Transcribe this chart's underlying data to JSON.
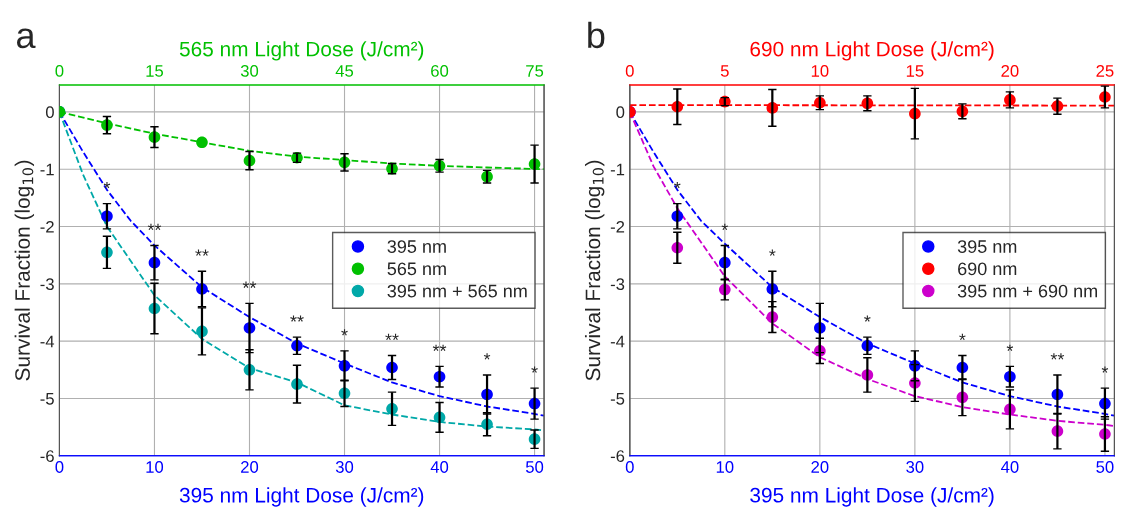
{
  "chart_data": [
    {
      "type": "scatter",
      "title": "a",
      "xlabel": "395 nm Light Dose (J/cm²)",
      "x2label": "565 nm Light Dose (J/cm²)",
      "ylabel": "Survival Fraction (log$_{10}$)",
      "xlim": [
        0,
        51
      ],
      "xticks": [
        0,
        10,
        20,
        30,
        40,
        50
      ],
      "x2lim": [
        0,
        76.5
      ],
      "x2ticks": [
        0,
        15,
        30,
        45,
        60,
        75
      ],
      "ylim": [
        -6,
        0.47
      ],
      "yticks": [
        -6,
        -5,
        -4,
        -3,
        -2,
        -1,
        0
      ],
      "grid": true,
      "legend": "right",
      "marker": "circle",
      "series": [
        {
          "name": "395 nm",
          "color": "#0000ff",
          "x": [
            0,
            5,
            10,
            15,
            20,
            25,
            30,
            35,
            40,
            45,
            50
          ],
          "values": [
            0,
            -1.82,
            -2.63,
            -3.09,
            -3.77,
            -4.08,
            -4.43,
            -4.46,
            -4.62,
            -4.93,
            -5.09
          ],
          "errors": [
            null,
            0.22,
            0.3,
            0.31,
            0.43,
            0.15,
            0.26,
            0.21,
            0.18,
            0.34,
            0.27
          ]
        },
        {
          "name": "565 nm",
          "axis": "x2",
          "color": "#00c000",
          "x": [
            0,
            7.5,
            15,
            22.5,
            30,
            37.5,
            45,
            52.5,
            60,
            67.5,
            75
          ],
          "values": [
            0,
            -0.23,
            -0.44,
            -0.53,
            -0.85,
            -0.8,
            -0.88,
            -0.99,
            -0.94,
            -1.13,
            -0.91
          ],
          "errors": [
            null,
            0.15,
            0.18,
            null,
            0.16,
            0.08,
            0.15,
            0.09,
            0.11,
            0.11,
            0.33
          ]
        },
        {
          "name": "395 nm + 565 nm",
          "color": "#00a8a8",
          "x": [
            0,
            5,
            10,
            15,
            20,
            25,
            30,
            35,
            40,
            45,
            50
          ],
          "values": [
            0,
            -2.45,
            -3.43,
            -3.83,
            -4.5,
            -4.75,
            -4.91,
            -5.18,
            -5.33,
            -5.45,
            -5.71
          ],
          "errors": [
            null,
            0.28,
            0.44,
            0.41,
            0.35,
            0.33,
            0.23,
            0.29,
            0.26,
            0.2,
            0.16
          ]
        },
        {
          "type": "line",
          "line_style": "dashed",
          "marker": "none",
          "color": "#0000ff",
          "x": [
            0,
            2.5,
            5,
            7.5,
            10,
            15,
            20,
            25,
            30,
            35,
            40,
            45,
            50,
            51
          ],
          "values": [
            0,
            -0.7,
            -1.36,
            -1.9,
            -2.33,
            -3.06,
            -3.58,
            -4.04,
            -4.39,
            -4.72,
            -4.96,
            -5.14,
            -5.27,
            -5.3
          ]
        },
        {
          "type": "line",
          "line_style": "dashed",
          "marker": "none",
          "axis": "x2",
          "color": "#00c000",
          "x": [
            0,
            7.5,
            15,
            22.5,
            30,
            37.5,
            45,
            52.5,
            60,
            67.5,
            76.5
          ],
          "values": [
            0,
            -0.2,
            -0.38,
            -0.53,
            -0.68,
            -0.78,
            -0.84,
            -0.9,
            -0.94,
            -0.97,
            -1.0
          ]
        },
        {
          "type": "line",
          "line_style": "dashed",
          "marker": "none",
          "color": "#00a8a8",
          "x": [
            0,
            2.5,
            5,
            10,
            15,
            20,
            25,
            30,
            35,
            40,
            45,
            50,
            51
          ],
          "values": [
            0,
            -1.1,
            -2.0,
            -3.2,
            -3.96,
            -4.47,
            -4.72,
            -5.12,
            -5.28,
            -5.41,
            -5.49,
            -5.54,
            -5.56
          ]
        }
      ],
      "annotations": [
        {
          "text": "*",
          "x": 5,
          "y": -1.6
        },
        {
          "text": "**",
          "x": 10,
          "y": -2.33
        },
        {
          "text": "**",
          "x": 15,
          "y": -2.78
        },
        {
          "text": "**",
          "x": 20,
          "y": -3.34
        },
        {
          "text": "**",
          "x": 25,
          "y": -3.93
        },
        {
          "text": "*",
          "x": 30,
          "y": -4.17
        },
        {
          "text": "**",
          "x": 35,
          "y": -4.25
        },
        {
          "text": "**",
          "x": 40,
          "y": -4.44
        },
        {
          "text": "*",
          "x": 45,
          "y": -4.59
        },
        {
          "text": "*",
          "x": 50,
          "y": -4.82
        }
      ]
    },
    {
      "type": "scatter",
      "title": "b",
      "xlabel": "395 nm Light Dose (J/cm²)",
      "x2label": "690 nm Light Dose (J/cm²)",
      "ylabel": "Survival Fraction (log$_{10}$)",
      "xlim": [
        0,
        51
      ],
      "xticks": [
        0,
        10,
        20,
        30,
        40,
        50
      ],
      "x2lim": [
        0,
        25.5
      ],
      "x2ticks": [
        0,
        5,
        10,
        15,
        20,
        25
      ],
      "ylim": [
        -6,
        0.47
      ],
      "yticks": [
        -6,
        -5,
        -4,
        -3,
        -2,
        -1,
        0
      ],
      "grid": true,
      "legend": "right",
      "marker": "circle",
      "series": [
        {
          "name": "395 nm",
          "color": "#0000ff",
          "x": [
            0,
            5,
            10,
            15,
            20,
            25,
            30,
            35,
            40,
            45,
            50
          ],
          "values": [
            0,
            -1.82,
            -2.63,
            -3.09,
            -3.77,
            -4.08,
            -4.43,
            -4.46,
            -4.62,
            -4.93,
            -5.09
          ],
          "errors": [
            null,
            0.22,
            0.3,
            0.31,
            0.43,
            0.15,
            0.26,
            0.21,
            0.18,
            0.34,
            0.27
          ]
        },
        {
          "name": "690 nm",
          "axis": "x2",
          "color": "#ff0000",
          "x": [
            0,
            2.5,
            5,
            7.5,
            10,
            12.5,
            15,
            17.5,
            20,
            22.5,
            25
          ],
          "values": [
            0,
            0.09,
            0.18,
            0.07,
            0.16,
            0.15,
            -0.03,
            0.01,
            0.21,
            0.1,
            0.26
          ],
          "errors": [
            null,
            0.31,
            0.07,
            0.32,
            0.12,
            0.13,
            0.44,
            0.13,
            0.14,
            0.14,
            0.19
          ]
        },
        {
          "name": "395 nm + 690 nm",
          "color": "#cc00cc",
          "x": [
            0,
            5,
            10,
            15,
            20,
            25,
            30,
            35,
            40,
            45,
            50
          ],
          "values": [
            0,
            -2.37,
            -3.1,
            -3.58,
            -4.17,
            -4.59,
            -4.73,
            -4.98,
            -5.19,
            -5.57,
            -5.62
          ],
          "errors": [
            null,
            0.27,
            0.18,
            0.27,
            0.22,
            0.3,
            0.32,
            0.32,
            0.34,
            0.31,
            0.3
          ]
        },
        {
          "type": "line",
          "line_style": "dashed",
          "marker": "none",
          "color": "#0000ff",
          "x": [
            0,
            2.5,
            5,
            7.5,
            10,
            15,
            20,
            25,
            30,
            35,
            40,
            45,
            50,
            51
          ],
          "values": [
            0,
            -0.7,
            -1.36,
            -1.9,
            -2.3,
            -3.06,
            -3.58,
            -4.04,
            -4.39,
            -4.72,
            -4.96,
            -5.14,
            -5.27,
            -5.3
          ]
        },
        {
          "type": "line",
          "line_style": "dashed",
          "marker": "none",
          "axis": "x2",
          "color": "#ff0000",
          "x": [
            0,
            25.5
          ],
          "values": [
            0.12,
            0.11
          ]
        },
        {
          "type": "line",
          "line_style": "dashed",
          "marker": "none",
          "color": "#cc00cc",
          "x": [
            0,
            2.5,
            5,
            10,
            15,
            20,
            25,
            30,
            35,
            40,
            45,
            50,
            51
          ],
          "values": [
            0,
            -0.95,
            -1.68,
            -2.87,
            -3.69,
            -4.28,
            -4.66,
            -4.96,
            -5.15,
            -5.28,
            -5.39,
            -5.46,
            -5.48
          ]
        }
      ],
      "annotations": [
        {
          "text": "*",
          "x": 5,
          "y": -1.6
        },
        {
          "text": "*",
          "x": 10,
          "y": -2.33
        },
        {
          "text": "*",
          "x": 15,
          "y": -2.78
        },
        {
          "text": "*",
          "x": 25,
          "y": -3.93
        },
        {
          "text": "*",
          "x": 35,
          "y": -4.25
        },
        {
          "text": "*",
          "x": 40,
          "y": -4.44
        },
        {
          "text": "**",
          "x": 45,
          "y": -4.59
        },
        {
          "text": "*",
          "x": 50,
          "y": -4.82
        }
      ]
    }
  ]
}
